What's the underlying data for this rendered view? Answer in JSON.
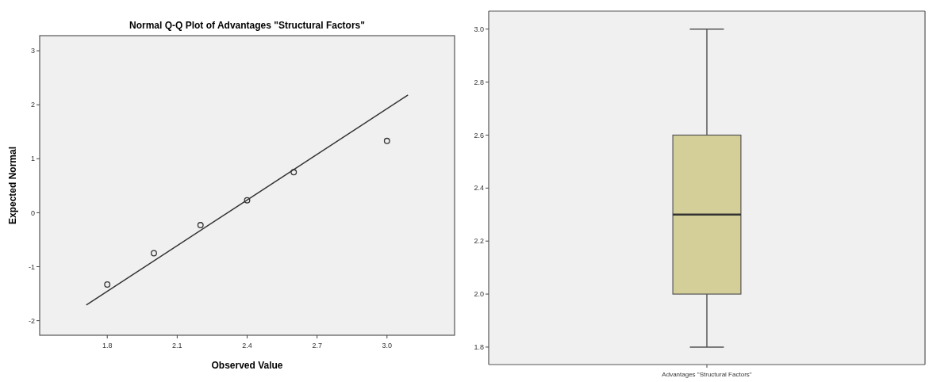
{
  "chart_data": [
    {
      "type": "scatter",
      "title": "Normal Q-Q Plot of Advantages \"Structural Factors\"",
      "xlabel": "Observed Value",
      "ylabel": "Expected Normal",
      "xlim": [
        1.51,
        3.29
      ],
      "ylim": [
        -2.27,
        3.28
      ],
      "xticks": [
        1.8,
        2.1,
        2.4,
        2.7,
        {
          "value": 3,
          "label": "3.0"
        }
      ],
      "yticks": [
        -2,
        -1,
        0,
        1,
        2,
        3
      ],
      "series": [
        {
          "type": "scatter",
          "marker": "circle",
          "color": "#333333",
          "x": [
            1.8,
            2.0,
            2.2,
            2.4,
            2.6,
            3.0
          ],
          "values": [
            -1.33,
            -0.75,
            -0.23,
            0.23,
            0.75,
            1.33
          ]
        },
        {
          "type": "line",
          "marker": "none",
          "color": "#333333",
          "x": [
            1.71,
            3.09
          ],
          "values": [
            -1.71,
            2.18
          ]
        }
      ]
    },
    {
      "type": "box",
      "categories": [
        "Advantages \"Structural Factors\""
      ],
      "ylim": [
        1.734,
        3.068
      ],
      "yticks": [
        {
          "value": 1.8,
          "label": "1.8"
        },
        {
          "value": 2,
          "label": "2.0"
        },
        {
          "value": 2.2,
          "label": "2.2"
        },
        {
          "value": 2.4,
          "label": "2.4"
        },
        {
          "value": 2.6,
          "label": "2.6"
        },
        {
          "value": 2.8,
          "label": "2.8"
        },
        {
          "value": 3,
          "label": "3.0"
        }
      ],
      "series": [
        {
          "color": "#d4cf99",
          "boxes": [
            {
              "low": 1.8,
              "q1": 2.0,
              "median": 2.3,
              "q3": 2.6,
              "high": 3.0
            }
          ]
        }
      ]
    }
  ]
}
